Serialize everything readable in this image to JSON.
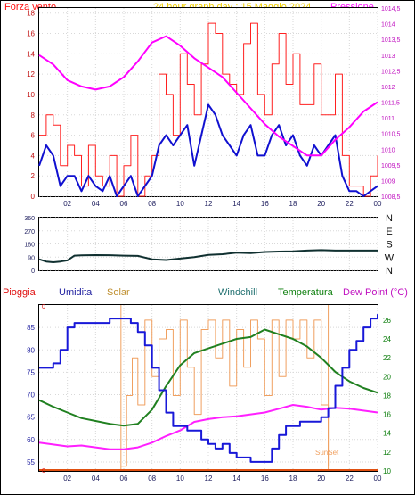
{
  "header": {
    "top_left": "Forza vento",
    "title": "24 hour graph day : 15 Maggio 2024",
    "top_right": "Pressione",
    "sunset": "SunSet"
  },
  "legend": {
    "pioggia": "Pioggia",
    "umidita": "Umidita",
    "solar": "Solar",
    "windchill": "Windchill",
    "temperatura": "Temperatura",
    "dewpoint": "Dew Point (°C)"
  },
  "colors": {
    "wind_gust": "#ff2020",
    "wind_avg": "#1010d0",
    "pressure": "#ff00ff",
    "direction": "#103030",
    "humidity": "#1818d8",
    "solar": "#f0a060",
    "temperature": "#208020",
    "dewpoint": "#ff20ff",
    "rain": "#e05010",
    "label_dark": "#202060"
  },
  "chart_data": [
    {
      "type": "line",
      "title": "24 hour graph day : 15 Maggio 2024",
      "x_ticks": [
        "02",
        "04",
        "06",
        "08",
        "10",
        "12",
        "14",
        "16",
        "18",
        "20",
        "22",
        "00"
      ],
      "xlim": [
        0,
        24
      ],
      "ylabel_left": "Forza vento",
      "ylim_left": [
        0,
        18.5
      ],
      "y_ticks_left": [
        0,
        2,
        4,
        6,
        8,
        10,
        12,
        14,
        16,
        18
      ],
      "ylabel_right": "Pressione",
      "ylim_right": [
        1008.5,
        1014.5
      ],
      "y_ticks_right": [
        "1008,5",
        "1009",
        "1009,5",
        "1010",
        "1010,5",
        "1011",
        "1011,5",
        "1012",
        "1012,5",
        "1013",
        "1013,5",
        "1014",
        "1014,5"
      ],
      "series": [
        {
          "name": "Forza vento (raffica)",
          "axis": "left",
          "x": [
            0,
            0.5,
            1,
            1.5,
            2,
            2.5,
            3,
            3.5,
            4,
            4.5,
            5,
            5.5,
            6,
            6.5,
            7,
            7.5,
            8,
            8.5,
            9,
            9.5,
            10,
            10.5,
            11,
            11.5,
            12,
            12.5,
            13,
            13.5,
            14,
            14.5,
            15,
            15.5,
            16,
            16.5,
            17,
            17.5,
            18,
            18.5,
            19,
            19.5,
            20,
            20.5,
            21,
            21.5,
            22,
            22.5,
            23,
            23.5,
            24
          ],
          "y": [
            6,
            8,
            7,
            3,
            5,
            4,
            1,
            5,
            2,
            1,
            4,
            0,
            3,
            6,
            0,
            2,
            4,
            12,
            10,
            6,
            14,
            11,
            8,
            13,
            17,
            16,
            12,
            11,
            10,
            15,
            17,
            10,
            8,
            13,
            16,
            11,
            14,
            9,
            9,
            13,
            8,
            8,
            12,
            4,
            1,
            1,
            0,
            2,
            4
          ]
        },
        {
          "name": "Forza vento (media)",
          "axis": "left",
          "x": [
            0,
            0.5,
            1,
            1.5,
            2,
            2.5,
            3,
            3.5,
            4,
            4.5,
            5,
            5.5,
            6,
            6.5,
            7,
            7.5,
            8,
            8.5,
            9,
            9.5,
            10,
            10.5,
            11,
            11.5,
            12,
            12.5,
            13,
            13.5,
            14,
            14.5,
            15,
            15.5,
            16,
            16.5,
            17,
            17.5,
            18,
            18.5,
            19,
            19.5,
            20,
            20.5,
            21,
            21.5,
            22,
            22.5,
            23,
            23.5,
            24
          ],
          "y": [
            3,
            5,
            4,
            1,
            2,
            2,
            0.5,
            2,
            1,
            0.5,
            2,
            0,
            1,
            2,
            0,
            1,
            2,
            5,
            6,
            5,
            6,
            7,
            3,
            6,
            9,
            8,
            6,
            5,
            4,
            6,
            7,
            4,
            4,
            6,
            7,
            5,
            6,
            4,
            3,
            5,
            4,
            5,
            6,
            2,
            0.5,
            0.5,
            0,
            0.5,
            1
          ]
        },
        {
          "name": "Pressione",
          "axis": "right",
          "x": [
            0,
            1,
            2,
            3,
            4,
            5,
            6,
            7,
            8,
            9,
            10,
            11,
            12,
            13,
            14,
            15,
            16,
            17,
            18,
            19,
            20,
            21,
            22,
            23,
            24
          ],
          "y": [
            1013.0,
            1012.7,
            1012.2,
            1012.0,
            1011.9,
            1012.0,
            1012.3,
            1012.8,
            1013.4,
            1013.6,
            1013.3,
            1012.9,
            1012.6,
            1012.3,
            1011.8,
            1011.3,
            1010.8,
            1010.4,
            1010.1,
            1009.8,
            1009.8,
            1010.3,
            1010.7,
            1011.2,
            1011.5
          ]
        }
      ]
    },
    {
      "type": "line",
      "x_ticks": [
        "02",
        "04",
        "06",
        "08",
        "10",
        "12",
        "14",
        "16",
        "18",
        "20",
        "22",
        "00"
      ],
      "xlim": [
        0,
        24
      ],
      "ylim": [
        0,
        360
      ],
      "y_ticks": [
        0,
        90,
        180,
        270,
        360
      ],
      "y_tick_labels": [
        "0",
        "90",
        "180",
        "270",
        "360"
      ],
      "direction_labels": [
        "N",
        "W",
        "S",
        "E",
        "N"
      ],
      "series": [
        {
          "name": "Direzione vento",
          "x": [
            0,
            0.5,
            1,
            1.5,
            2,
            2.5,
            3,
            4,
            5,
            6,
            7,
            8,
            9,
            10,
            11,
            12,
            13,
            14,
            15,
            16,
            17,
            18,
            19,
            20,
            21,
            22,
            23,
            24
          ],
          "y": [
            75,
            60,
            55,
            60,
            68,
            100,
            102,
            104,
            103,
            100,
            98,
            75,
            70,
            80,
            90,
            105,
            110,
            120,
            118,
            125,
            128,
            130,
            135,
            138,
            135,
            135,
            135,
            135
          ]
        }
      ]
    },
    {
      "type": "line",
      "x_ticks": [
        "02",
        "04",
        "06",
        "08",
        "10",
        "12",
        "14",
        "16",
        "18",
        "20",
        "22",
        "00"
      ],
      "xlim": [
        0,
        24
      ],
      "ylabel_left": "Umidita",
      "ylim_left": [
        53,
        90
      ],
      "y_ticks_left": [
        55,
        60,
        65,
        70,
        75,
        80,
        85
      ],
      "ylabel_right": "Temperatura",
      "ylim_right": [
        10,
        27.6
      ],
      "y_ticks_right": [
        10,
        12,
        14,
        16,
        18,
        20,
        22,
        24,
        26
      ],
      "annotations": [
        {
          "text": "SunSet",
          "x": 20.5
        }
      ],
      "series": [
        {
          "name": "Umidita",
          "axis": "left",
          "x": [
            0,
            0.5,
            1,
            1.5,
            2,
            2.5,
            3,
            4,
            5,
            6,
            6.5,
            7,
            7.5,
            8,
            8.5,
            9,
            9.5,
            10,
            10.5,
            11,
            11.5,
            12,
            12.5,
            13,
            13.5,
            14,
            14.5,
            15,
            15.5,
            16,
            16.5,
            17,
            17.5,
            18,
            18.5,
            19,
            19.5,
            20,
            20.5,
            21,
            21.5,
            22,
            22.5,
            23,
            23.5,
            24
          ],
          "y": [
            76,
            76,
            77,
            80,
            85,
            86,
            86,
            86,
            87,
            87,
            86,
            84,
            81,
            76,
            71,
            66,
            63,
            63,
            62,
            62,
            60,
            59,
            58,
            59,
            57,
            56,
            56,
            55,
            55,
            55,
            58,
            61,
            63,
            63,
            64,
            64,
            64,
            65,
            67,
            72,
            76,
            80,
            82,
            85,
            87,
            88
          ]
        },
        {
          "name": "Temperatura",
          "axis": "right",
          "x": [
            0,
            1,
            2,
            3,
            4,
            5,
            6,
            7,
            8,
            9,
            10,
            11,
            12,
            13,
            14,
            15,
            16,
            17,
            18,
            19,
            20,
            21,
            22,
            23,
            24
          ],
          "y": [
            17.5,
            16.8,
            16.2,
            15.6,
            15.3,
            15.0,
            14.8,
            15.0,
            16.5,
            19.0,
            21.2,
            22.5,
            23.0,
            23.5,
            24.0,
            24.2,
            25.0,
            24.5,
            24.0,
            23.2,
            22.0,
            20.5,
            19.5,
            18.8,
            18.3
          ]
        },
        {
          "name": "Dew Point",
          "axis": "right",
          "x": [
            0,
            1,
            2,
            3,
            4,
            5,
            6,
            7,
            8,
            9,
            10,
            11,
            12,
            13,
            14,
            15,
            16,
            17,
            18,
            19,
            20,
            21,
            22,
            23,
            24
          ],
          "y": [
            13.0,
            12.8,
            12.6,
            12.7,
            12.5,
            12.3,
            12.3,
            12.5,
            13.0,
            13.7,
            14.3,
            15.2,
            15.5,
            15.7,
            15.8,
            16.0,
            16.2,
            16.6,
            17.0,
            16.8,
            16.5,
            16.7,
            16.6,
            16.4,
            16.2
          ]
        },
        {
          "name": "Solar",
          "axis": "right",
          "x": [
            5.8,
            6.2,
            6.6,
            7,
            7.5,
            8,
            8.5,
            9,
            9.5,
            10,
            10.5,
            11,
            11.5,
            12,
            12.5,
            13,
            13.5,
            14,
            14.5,
            15,
            15.5,
            16,
            16.5,
            17,
            17.5,
            18,
            18.5,
            19,
            19.5,
            20,
            20.5
          ],
          "y": [
            10.5,
            18,
            22,
            17,
            26,
            20,
            24,
            25,
            18,
            26,
            21,
            16,
            25,
            26,
            22,
            26,
            19,
            25,
            21,
            26,
            24,
            18,
            26,
            20,
            26,
            24,
            26,
            22,
            26,
            17,
            10.5
          ]
        }
      ]
    }
  ]
}
